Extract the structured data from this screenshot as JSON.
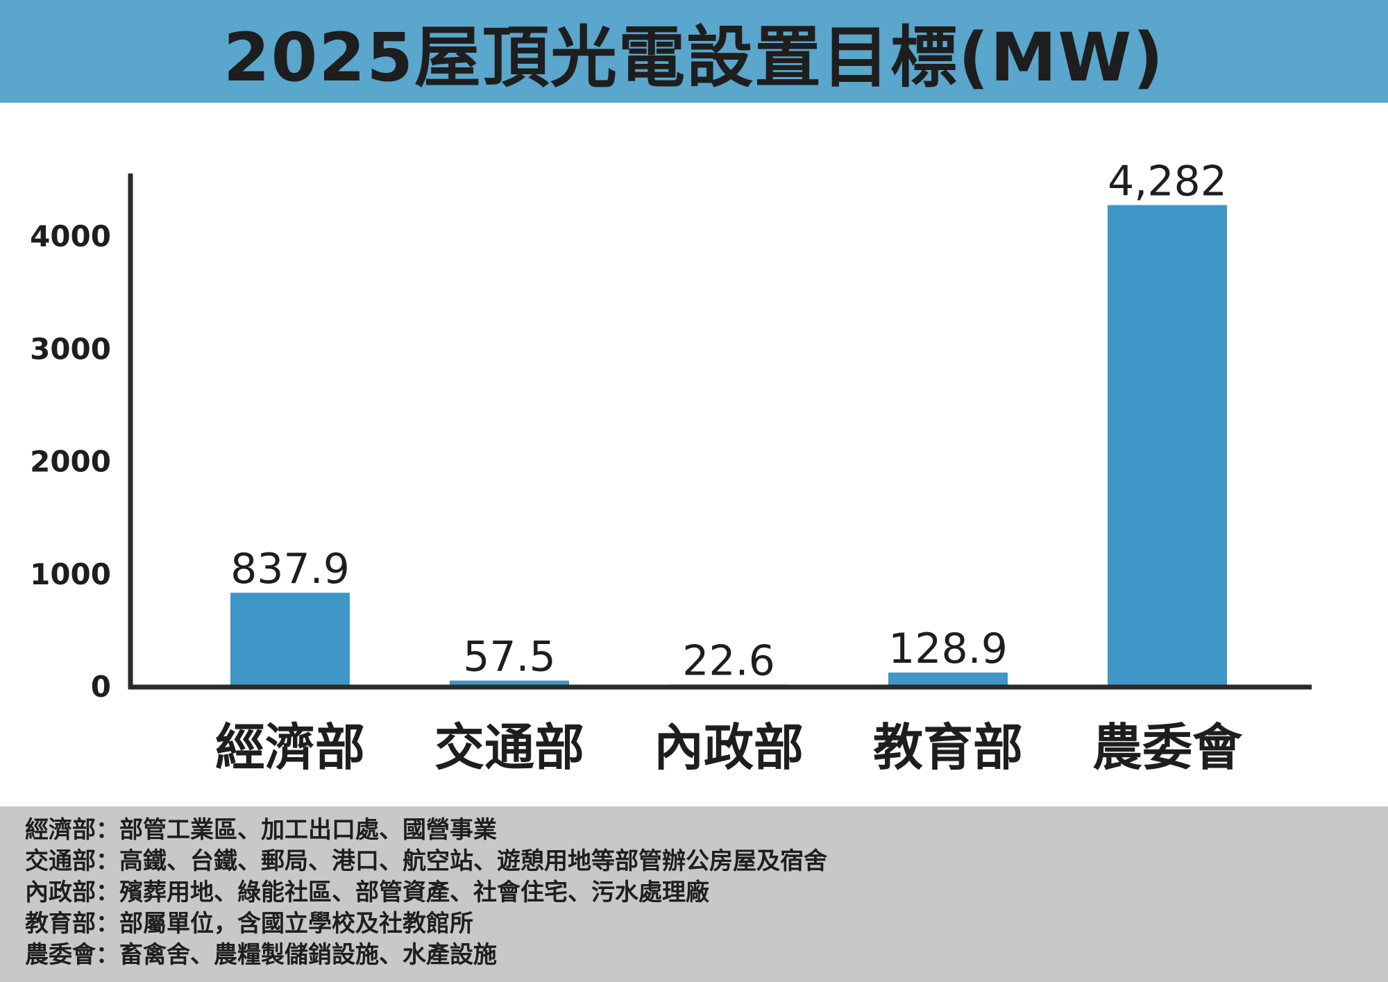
{
  "title": "2025屋頂光電設置目標(MW)",
  "chart_data": {
    "type": "bar",
    "title": "2025屋頂光電設置目標(MW)",
    "categories": [
      "經濟部",
      "交通部",
      "內政部",
      "教育部",
      "農委會"
    ],
    "values": [
      837.9,
      57.5,
      22.6,
      128.9,
      4282
    ],
    "data_labels": [
      "837.9",
      "57.5",
      "22.6",
      "128.9",
      "4,282"
    ],
    "yticks": [
      0,
      1000,
      2000,
      3000,
      4000
    ],
    "ytick_labels": [
      "0",
      "1000",
      "2000",
      "3000",
      "4000"
    ],
    "ylim": [
      0,
      4600
    ],
    "xlabel": "",
    "ylabel": "",
    "grid": false,
    "bar_color": "#3e97c6"
  },
  "notes": [
    "經濟部：部管工業區、加工出口處、國營事業",
    "交通部：高鐵、台鐵、郵局、港口、航空站、遊憩用地等部管辦公房屋及宿舍",
    "內政部：殯葬用地、綠能社區、部管資產、社會住宅、污水處理廠",
    "教育部：部屬單位，含國立學校及社教館所",
    "農委會：畜禽舍、農糧製儲銷設施、水產設施"
  ],
  "colors": {
    "title_bar": "#5aa6cc",
    "bar": "#3e97c6",
    "notes_bg": "#c8c8c8",
    "text": "#1e1e1e"
  }
}
